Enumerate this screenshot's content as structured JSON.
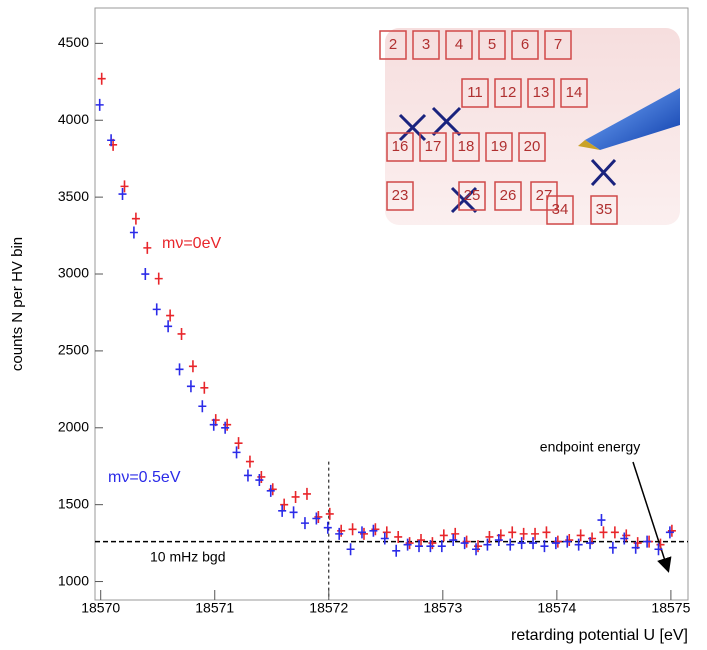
{
  "chart_data": {
    "type": "scatter",
    "y_label": "counts N per HV bin",
    "x_label": "retarding potential U [eV]",
    "x": [
      18570,
      18570.1,
      18570.2,
      18570.3,
      18570.4,
      18570.5,
      18570.6,
      18570.7,
      18570.8,
      18570.9,
      18571,
      18571.1,
      18571.2,
      18571.3,
      18571.4,
      18571.5,
      18571.6,
      18571.7,
      18571.8,
      18571.9,
      18572,
      18572.1,
      18572.2,
      18572.3,
      18572.4,
      18572.5,
      18572.6,
      18572.7,
      18572.8,
      18572.9,
      18573,
      18573.1,
      18573.2,
      18573.3,
      18573.4,
      18573.5,
      18573.6,
      18573.7,
      18573.8,
      18573.9,
      18574,
      18574.1,
      18574.2,
      18574.3,
      18574.4,
      18574.5,
      18574.6,
      18574.7,
      18574.8,
      18574.9,
      18575
    ],
    "series": [
      {
        "name": "mν=0eV",
        "color": "#e8262b",
        "values": [
          4270,
          3840,
          3570,
          3360,
          3170,
          2970,
          2730,
          2610,
          2400,
          2260,
          2050,
          2020,
          1900,
          1780,
          1680,
          1600,
          1500,
          1550,
          1570,
          1420,
          1440,
          1330,
          1340,
          1310,
          1340,
          1320,
          1290,
          1250,
          1270,
          1250,
          1300,
          1310,
          1260,
          1230,
          1290,
          1300,
          1320,
          1310,
          1310,
          1320,
          1260,
          1270,
          1300,
          1280,
          1320,
          1320,
          1300,
          1250,
          1260,
          1240,
          1330
        ]
      },
      {
        "name": "mν=0.5eV",
        "color": "#2b2be8",
        "values": [
          4100,
          3870,
          3520,
          3270,
          3000,
          2770,
          2660,
          2380,
          2270,
          2140,
          2020,
          2000,
          1840,
          1690,
          1660,
          1590,
          1460,
          1450,
          1380,
          1410,
          1350,
          1310,
          1210,
          1320,
          1330,
          1280,
          1200,
          1240,
          1230,
          1230,
          1230,
          1270,
          1250,
          1210,
          1240,
          1270,
          1240,
          1250,
          1250,
          1230,
          1250,
          1260,
          1240,
          1250,
          1400,
          1220,
          1280,
          1220,
          1260,
          1210,
          1320
        ]
      }
    ],
    "xlim": [
      18569.95,
      18575.15
    ],
    "ylim": [
      880,
      4730
    ],
    "xticks": [
      18570,
      18571,
      18572,
      18573,
      18574,
      18575
    ],
    "yticks": [
      1000,
      1500,
      2000,
      2500,
      3000,
      3500,
      4000,
      4500
    ],
    "background": {
      "label": "10 mHz bgd",
      "value": 1260
    },
    "divider": {
      "x": 18572,
      "top": 1780
    },
    "endpoint": {
      "label": "endpoint energy",
      "x": 18575
    },
    "inset_numbers": [
      [
        "2",
        "3",
        "4",
        "5",
        "6",
        "7"
      ],
      [
        "11",
        "12",
        "13",
        "14"
      ],
      [
        "16",
        "17",
        "18",
        "19",
        "20"
      ],
      [
        "23",
        "25",
        "26",
        "27"
      ],
      [
        "34",
        "35"
      ]
    ]
  }
}
